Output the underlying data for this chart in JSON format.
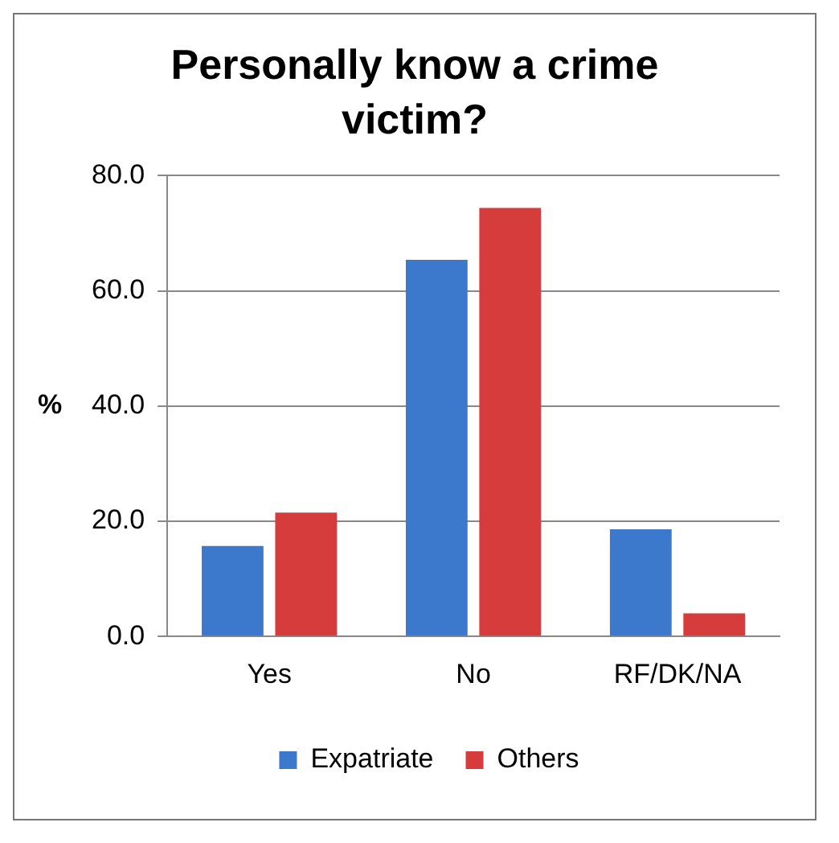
{
  "chart_data": {
    "type": "bar",
    "title": "Personally know a crime victim?",
    "ylabel": "%",
    "categories": [
      "Yes",
      "No",
      "RF/DK/NA"
    ],
    "series": [
      {
        "name": "Expatriate",
        "color": "#3c78cc",
        "values": [
          15.7,
          65.4,
          18.6
        ]
      },
      {
        "name": "Others",
        "color": "#d63c3c",
        "values": [
          21.5,
          74.4,
          4.0
        ]
      }
    ],
    "ylim": [
      0,
      80
    ],
    "yticks": [
      {
        "value": 0,
        "label": "0.0"
      },
      {
        "value": 20,
        "label": "20.0"
      },
      {
        "value": 40,
        "label": "40.0"
      },
      {
        "value": 60,
        "label": "60.0"
      },
      {
        "value": 80,
        "label": "80.0"
      }
    ],
    "grid": "y",
    "legend": "bottom"
  }
}
